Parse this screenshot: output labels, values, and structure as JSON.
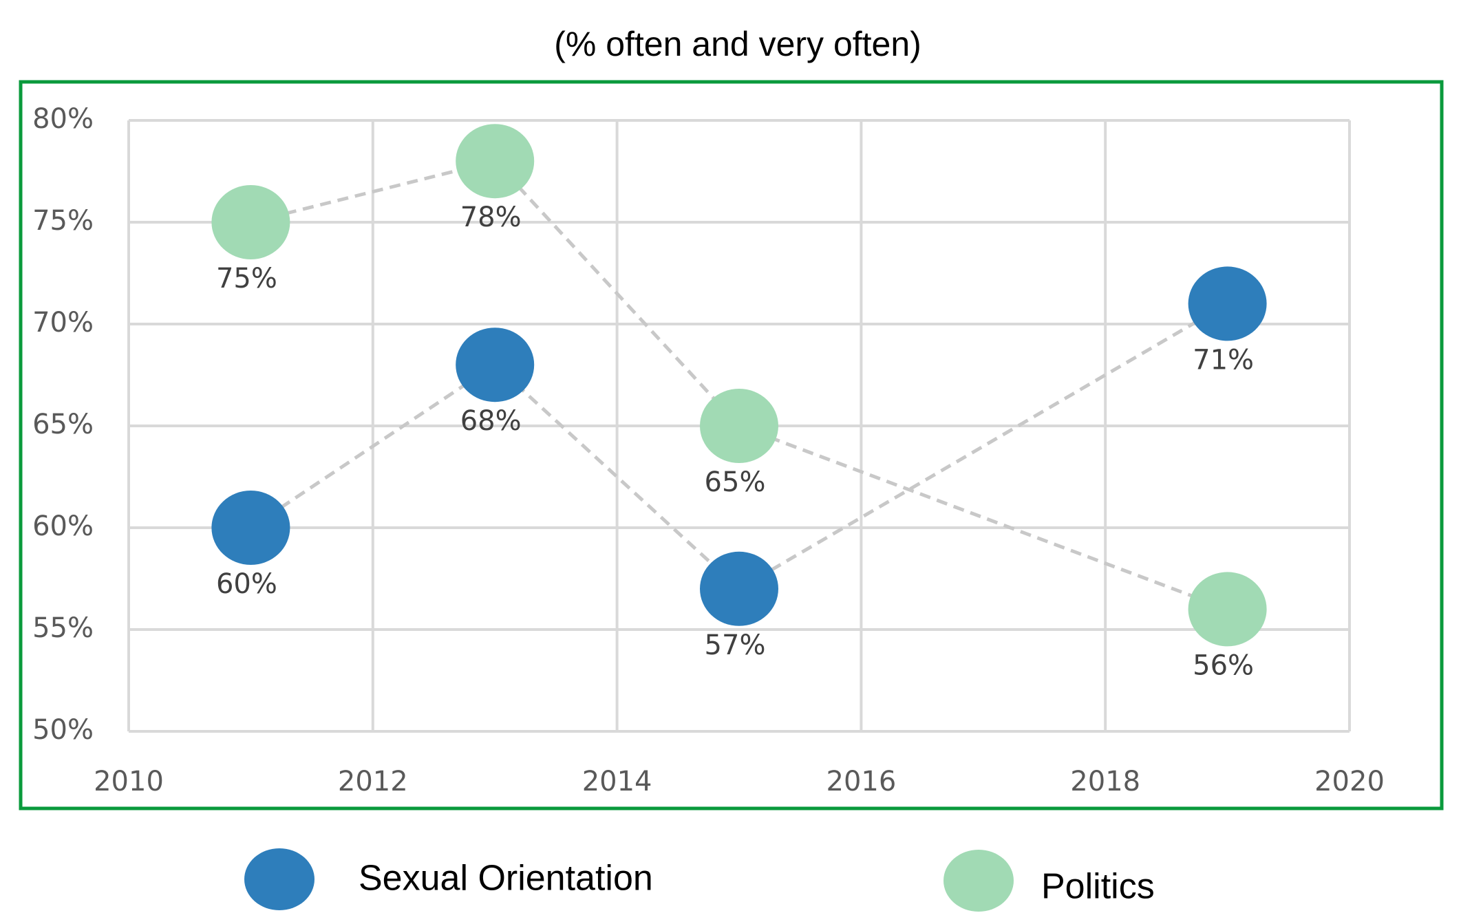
{
  "chart_data": {
    "type": "line",
    "title": "(% often and very often)",
    "x": [
      2011,
      2013,
      2015,
      2019
    ],
    "series": [
      {
        "name": "Sexual Orientation",
        "color": "#2e7ebb",
        "values": [
          60,
          68,
          57,
          71
        ],
        "value_labels": [
          "60%",
          "68%",
          "57%",
          "71%"
        ]
      },
      {
        "name": "Politics",
        "color": "#a1dab4",
        "values": [
          75,
          78,
          65,
          56
        ],
        "value_labels": [
          "75%",
          "78%",
          "65%",
          "56%"
        ]
      }
    ],
    "line_color": "#c8c8c8",
    "xlim": [
      2010,
      2020
    ],
    "xticks": [
      2010,
      2012,
      2014,
      2016,
      2018,
      2020
    ],
    "ylim": [
      50,
      80
    ],
    "yticks": [
      {
        "value": 50,
        "label": "50%"
      },
      {
        "value": 55,
        "label": "55%"
      },
      {
        "value": 60,
        "label": "60%"
      },
      {
        "value": 65,
        "label": "65%"
      },
      {
        "value": 70,
        "label": "70%"
      },
      {
        "value": 75,
        "label": "75%"
      },
      {
        "value": 80,
        "label": "80%"
      }
    ],
    "grid": true,
    "legend": "bottom",
    "frame_color": "#0a9a3c"
  }
}
